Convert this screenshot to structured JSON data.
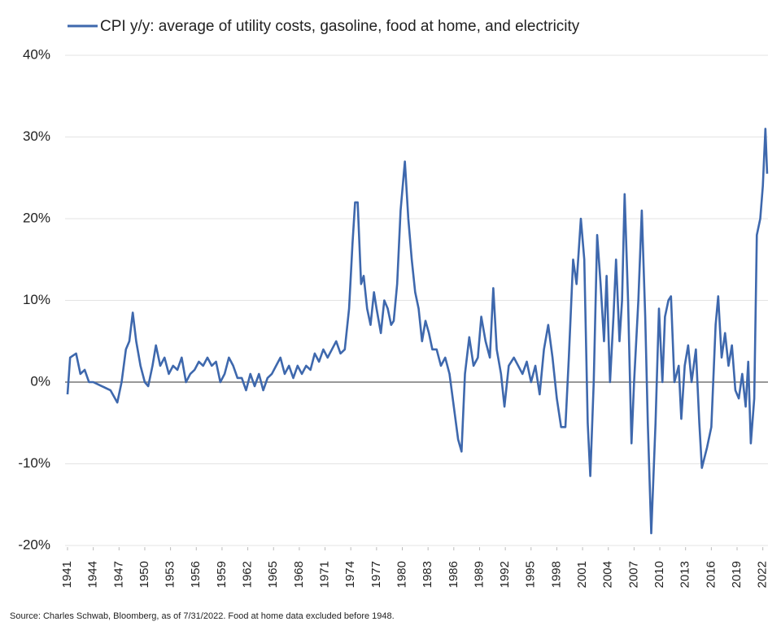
{
  "chart_data": {
    "type": "line",
    "series": [
      {
        "name": "CPI y/y: average of utility costs, gasoline, food at home, and electricity",
        "color": "#3e68ad",
        "values": [
          -1.5,
          3,
          3.5,
          1,
          1.5,
          0,
          0,
          -0.5,
          -1,
          -2.5,
          0,
          4,
          5,
          8.5,
          5,
          2,
          0,
          -0.5,
          2,
          4.5,
          2,
          3,
          1,
          2,
          1.5,
          3,
          0,
          1,
          1.5,
          2.5,
          2,
          3,
          2,
          2.5,
          0,
          1,
          3,
          2,
          0.5,
          0.5,
          -1,
          1,
          -0.5,
          1,
          -1,
          0.5,
          1,
          2,
          3,
          1,
          2,
          0.5,
          2,
          1,
          2,
          1.5,
          3.5,
          2.5,
          4,
          3,
          4,
          5,
          3.5,
          4,
          9,
          17,
          22,
          22,
          12,
          13,
          9,
          7,
          11,
          9,
          6,
          10,
          9,
          7,
          7.5,
          12,
          21,
          27,
          20,
          15,
          11,
          9,
          5,
          7.5,
          6,
          4,
          4,
          2,
          3,
          1,
          -3,
          -7,
          -8.5,
          1,
          5.5,
          2,
          3,
          8,
          5,
          3,
          11.5,
          4,
          1,
          -3,
          2,
          3,
          2,
          1,
          2.5,
          0,
          2,
          -1.5,
          4,
          7,
          3,
          -2,
          -5.5,
          -5.5,
          3,
          15,
          12,
          20,
          15,
          -5,
          -11.5,
          0,
          18,
          12,
          5,
          13,
          0,
          8,
          15,
          5,
          10,
          23,
          10,
          -7.5,
          0,
          10,
          21,
          8,
          -5,
          -18.5,
          -5,
          9,
          0,
          8,
          10,
          10.5,
          0,
          2,
          -4.5,
          2,
          4.5,
          0,
          4,
          -5,
          -10.5,
          -8,
          -5.5,
          7,
          10.5,
          3,
          6,
          2,
          4.5,
          -1,
          -2,
          1,
          -3,
          2.5,
          -7.5,
          -2,
          18,
          20,
          24,
          31,
          25.5
        ]
      }
    ],
    "x": [
      1941,
      1941.3,
      1942,
      1942.5,
      1943,
      1943.5,
      1944,
      1945,
      1946,
      1946.8,
      1947.3,
      1947.8,
      1948.2,
      1948.6,
      1949,
      1949.5,
      1950,
      1950.4,
      1950.9,
      1951.3,
      1951.8,
      1952.3,
      1952.8,
      1953.3,
      1953.8,
      1954.3,
      1954.8,
      1955.3,
      1955.8,
      1956.3,
      1956.8,
      1957.3,
      1957.8,
      1958.3,
      1958.8,
      1959.3,
      1959.8,
      1960.3,
      1960.8,
      1961.3,
      1961.8,
      1962.3,
      1962.8,
      1963.3,
      1963.8,
      1964.3,
      1964.8,
      1965.3,
      1965.8,
      1966.3,
      1966.8,
      1967.3,
      1967.8,
      1968.3,
      1968.8,
      1969.3,
      1969.8,
      1970.3,
      1970.8,
      1971.3,
      1971.8,
      1972.3,
      1972.8,
      1973.3,
      1973.8,
      1974.2,
      1974.5,
      1974.8,
      1975.2,
      1975.5,
      1975.9,
      1976.3,
      1976.7,
      1977,
      1977.5,
      1977.9,
      1978.3,
      1978.7,
      1979,
      1979.4,
      1979.8,
      1980.3,
      1980.7,
      1981.1,
      1981.5,
      1981.9,
      1982.3,
      1982.7,
      1983.1,
      1983.5,
      1984,
      1984.5,
      1985,
      1985.5,
      1986,
      1986.5,
      1986.9,
      1987.3,
      1987.8,
      1988.3,
      1988.8,
      1989.2,
      1989.7,
      1990.2,
      1990.6,
      1991,
      1991.5,
      1991.9,
      1992.4,
      1993,
      1993.5,
      1994,
      1994.5,
      1995,
      1995.5,
      1996,
      1996.5,
      1997,
      1997.5,
      1998,
      1998.5,
      1999,
      1999.4,
      1999.9,
      2000.3,
      2000.8,
      2001.2,
      2001.6,
      2001.9,
      2002.3,
      2002.7,
      2003.1,
      2003.5,
      2003.8,
      2004.2,
      2004.6,
      2004.9,
      2005.3,
      2005.6,
      2005.9,
      2006.3,
      2006.7,
      2007,
      2007.5,
      2007.9,
      2008.3,
      2008.6,
      2009,
      2009.5,
      2009.9,
      2010.3,
      2010.6,
      2011,
      2011.3,
      2011.7,
      2012.2,
      2012.5,
      2012.9,
      2013.3,
      2013.7,
      2014.2,
      2014.6,
      2014.9,
      2015.5,
      2016,
      2016.5,
      2016.8,
      2017.2,
      2017.6,
      2018,
      2018.4,
      2018.8,
      2019.2,
      2019.6,
      2020,
      2020.3,
      2020.6,
      2021,
      2021.3,
      2021.7,
      2022,
      2022.3,
      2022.5
    ],
    "xlim": [
      1941,
      2022.6
    ],
    "xticks": [
      1941,
      1944,
      1947,
      1950,
      1953,
      1956,
      1959,
      1962,
      1965,
      1968,
      1971,
      1974,
      1977,
      1980,
      1983,
      1986,
      1989,
      1992,
      1995,
      1998,
      2001,
      2004,
      2007,
      2010,
      2013,
      2016,
      2019,
      2022
    ],
    "ylim": [
      -20,
      40
    ],
    "yticks": [
      {
        "value": -20,
        "label": "-20%"
      },
      {
        "value": -10,
        "label": "-10%"
      },
      {
        "value": 0,
        "label": "0%"
      },
      {
        "value": 10,
        "label": "10%"
      },
      {
        "value": 20,
        "label": "20%"
      },
      {
        "value": 30,
        "label": "30%"
      },
      {
        "value": 40,
        "label": "40%"
      }
    ],
    "grid": true,
    "zero_line": true,
    "legend": "top",
    "source": "Source: Charles Schwab, Bloomberg, as of 7/31/2022. Food at home data excluded before 1948."
  }
}
